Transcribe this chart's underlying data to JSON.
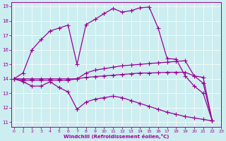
{
  "xlabel": "Windchill (Refroidissement éolien,°C)",
  "bg_color": "#cceef0",
  "line_color": "#990099",
  "marker": "+",
  "markersize": 4,
  "linewidth": 0.9,
  "xmin": 0,
  "xmax": 23,
  "ymin": 11,
  "ymax": 19,
  "yticks": [
    11,
    12,
    13,
    14,
    15,
    16,
    17,
    18,
    19
  ],
  "xticks": [
    0,
    1,
    2,
    3,
    4,
    5,
    6,
    7,
    8,
    9,
    10,
    11,
    12,
    13,
    14,
    15,
    16,
    17,
    18,
    19,
    20,
    21,
    22,
    23
  ],
  "lines": [
    {
      "x": [
        0,
        1,
        2,
        3,
        4,
        5,
        6,
        7,
        8,
        9,
        10,
        11,
        12,
        13,
        14,
        15,
        16,
        17,
        18,
        19,
        20,
        21,
        22
      ],
      "y": [
        14,
        14.4,
        16.0,
        16.7,
        17.3,
        17.5,
        17.7,
        15.0,
        17.75,
        18.1,
        18.5,
        18.85,
        18.6,
        18.7,
        18.9,
        18.95,
        17.5,
        15.4,
        15.35,
        14.2,
        13.5,
        13.0,
        11.1
      ]
    },
    {
      "x": [
        0,
        1,
        2,
        3,
        4,
        5,
        6,
        7,
        8,
        9,
        10,
        11,
        12,
        13,
        14,
        15,
        16,
        17,
        18,
        19,
        20,
        21,
        22
      ],
      "y": [
        14,
        13.8,
        13.5,
        13.5,
        13.8,
        13.4,
        13.1,
        11.9,
        12.4,
        12.6,
        12.7,
        12.8,
        12.7,
        12.5,
        12.3,
        12.1,
        11.9,
        11.7,
        11.55,
        11.4,
        11.3,
        11.2,
        11.1
      ]
    },
    {
      "x": [
        0,
        1,
        2,
        3,
        4,
        5,
        6,
        7,
        8,
        9,
        10,
        11,
        12,
        13,
        14,
        15,
        16,
        17,
        18,
        19,
        20,
        21,
        22
      ],
      "y": [
        14,
        13.9,
        13.9,
        13.9,
        13.9,
        13.9,
        13.9,
        14.0,
        14.4,
        14.6,
        14.7,
        14.8,
        14.9,
        14.95,
        15.0,
        15.05,
        15.1,
        15.15,
        15.2,
        15.25,
        14.2,
        13.7,
        11.1
      ]
    },
    {
      "x": [
        0,
        1,
        2,
        3,
        4,
        5,
        6,
        7,
        8,
        9,
        10,
        11,
        12,
        13,
        14,
        15,
        16,
        17,
        18,
        19,
        20,
        21,
        22
      ],
      "y": [
        14,
        14.0,
        14.0,
        14.0,
        14.0,
        14.0,
        14.0,
        14.0,
        14.1,
        14.15,
        14.2,
        14.25,
        14.3,
        14.35,
        14.4,
        14.4,
        14.42,
        14.45,
        14.45,
        14.45,
        14.2,
        14.1,
        11.1
      ]
    }
  ]
}
